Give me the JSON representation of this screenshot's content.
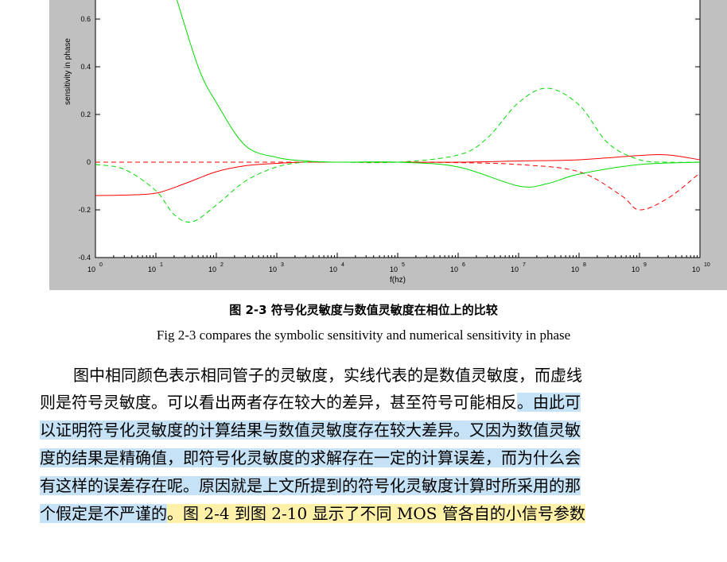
{
  "figure": {
    "chart_data": {
      "type": "line",
      "xlabel": "f(hz)",
      "ylabel": "sensitivity in phase",
      "x_scale": "log",
      "xlim": [
        1,
        10000000000
      ],
      "ylim": [
        -0.4,
        0.7
      ],
      "x_ticks": [
        "10",
        "10",
        "10",
        "10",
        "10",
        "10",
        "10",
        "10",
        "10",
        "10",
        "10"
      ],
      "x_tick_exponents": [
        "0",
        "1",
        "2",
        "3",
        "4",
        "5",
        "6",
        "7",
        "8",
        "9",
        "10"
      ],
      "y_ticks": [
        "-0.4",
        "-0.2",
        "0",
        "0.2",
        "0.4",
        "0.6"
      ],
      "series": [
        {
          "color": "#ff0000",
          "style": "solid",
          "x": [
            1,
            3,
            10,
            30,
            100,
            300,
            1000,
            3000,
            10000,
            100000,
            1000000,
            10000000,
            100000000,
            1000000000,
            3000000000,
            10000000000
          ],
          "y": [
            -0.14,
            -0.138,
            -0.13,
            -0.09,
            -0.04,
            -0.015,
            -0.005,
            0,
            0,
            0,
            0,
            0.005,
            0.01,
            0.028,
            0.03,
            0.01
          ]
        },
        {
          "color": "#ff0000",
          "style": "dashed",
          "x": [
            1,
            10,
            100,
            1000,
            10000,
            100000,
            1000000,
            10000000,
            100000000,
            500000000,
            1000000000,
            3000000000,
            10000000000
          ],
          "y": [
            0,
            0,
            0,
            0,
            0,
            0,
            -0.002,
            -0.01,
            -0.04,
            -0.14,
            -0.2,
            -0.15,
            -0.045
          ]
        },
        {
          "color": "#00dd00",
          "style": "solid",
          "x": [
            20,
            50,
            100,
            300,
            1000,
            3000,
            10000,
            100000,
            1000000,
            10000000,
            30000000,
            100000000,
            1000000000,
            10000000000
          ],
          "y": [
            0.72,
            0.4,
            0.25,
            0.07,
            0.02,
            0.005,
            0,
            0,
            -0.02,
            -0.1,
            -0.09,
            -0.05,
            -0.01,
            0
          ]
        },
        {
          "color": "#00dd00",
          "style": "dashed",
          "x": [
            1,
            3,
            10,
            20,
            40,
            100,
            300,
            1000,
            3000,
            10000,
            100000,
            1000000,
            3000000,
            10000000,
            30000000,
            100000000,
            300000000,
            1000000000,
            3000000000,
            10000000000
          ],
          "y": [
            -0.01,
            -0.03,
            -0.12,
            -0.22,
            -0.25,
            -0.18,
            -0.08,
            -0.02,
            0,
            0,
            0,
            0.03,
            0.1,
            0.25,
            0.31,
            0.24,
            0.08,
            0.01,
            0,
            0
          ]
        }
      ]
    }
  },
  "caption_cn": "图 2-3  符号化灵敏度与数值灵敏度在相位上的比较",
  "caption_en": "Fig 2-3 compares the symbolic sensitivity and numerical sensitivity in phase",
  "paragraph": {
    "l1": "图中相同颜色表示相同管子的灵敏度，实线代表的是数值灵敏度，而虚线",
    "l2a": "则是符号灵敏度。可以看出两者存在较大的差异，甚至符号可能相反",
    "l2b": "。由此可",
    "l3": "以证明符号化灵敏度的计算结果与数值灵敏度存在较大差异。又因为数值灵敏",
    "l4": "度的结果是精确值，即符号化灵敏度的求解存在一定的计算误差，而为什么会",
    "l5": "有这样的误差存在呢。原因就是上文所提到的符号化灵敏度计算时所采用的那",
    "l6a": "个假定是不严谨的",
    "l6b": "。图  2-4  到图  2-10  显示了不同  MOS  管各自的小信号参数"
  }
}
